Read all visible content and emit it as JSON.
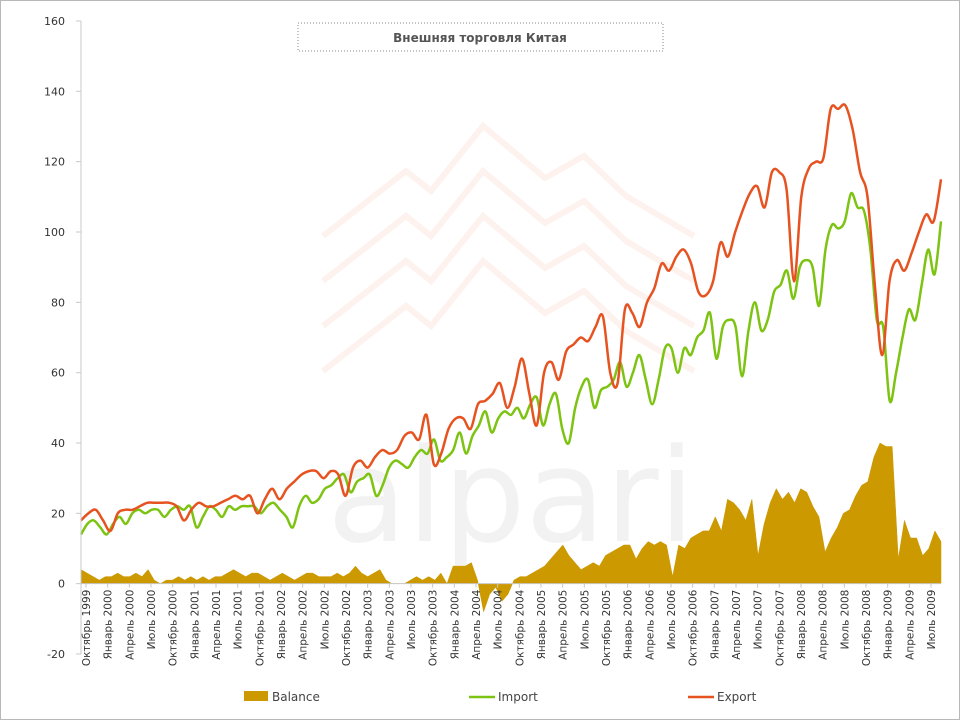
{
  "chart_data": {
    "type": "area",
    "title": "Внешняя торговля Китая",
    "watermark": "alpari",
    "ylim": [
      -20,
      160
    ],
    "yticks": [
      -20,
      0,
      20,
      40,
      60,
      80,
      100,
      120,
      140,
      160
    ],
    "grid": false,
    "legend_placement": "bottom",
    "x_labels": [
      "Октябрь 1999",
      "Январь 2000",
      "Апрель 2000",
      "Июль 2000",
      "Октябрь 2000",
      "Январь 2001",
      "Апрель 2001",
      "Июль 2001",
      "Октябрь 2001",
      "Январь 2002",
      "Апрель 2002",
      "Июль 2002",
      "Октябрь 2002",
      "Январь 2003",
      "Апрель 2003",
      "Июль 2003",
      "Октябрь 2003",
      "Январь 2004",
      "Апрель 2004",
      "Июль 2004",
      "Октябрь 2004",
      "Январь 2005",
      "Апрель 2005",
      "Июль 2005",
      "Октябрь 2005",
      "Январь 2006",
      "Апрель 2006",
      "Июль 2006",
      "Октябрь 2006",
      "Январь 2007",
      "Апрель 2007",
      "Июль 2007",
      "Октябрь 2007",
      "Январь 2008",
      "Апрель 2008",
      "Июль 2008",
      "Октябрь 2008",
      "Январь 2009",
      "Апрель 2009",
      "Июль 2009"
    ],
    "series": [
      {
        "name": "Balance",
        "color": "#CC9900",
        "kind": "area",
        "values": [
          4,
          3,
          2,
          1,
          2,
          2,
          3,
          2,
          2,
          3,
          2,
          4,
          1,
          0,
          1,
          1,
          2,
          1,
          2,
          1,
          2,
          1,
          2,
          2,
          3,
          4,
          3,
          2,
          3,
          3,
          2,
          1,
          2,
          3,
          2,
          1,
          2,
          3,
          3,
          2,
          2,
          2,
          3,
          2,
          3,
          5,
          3,
          2,
          3,
          4,
          1,
          0,
          0,
          0,
          1,
          2,
          1,
          2,
          1,
          3,
          0,
          5,
          5,
          5,
          6,
          1,
          -8,
          -3,
          -1,
          -5,
          -3,
          1,
          2,
          2,
          3,
          4,
          5,
          7,
          9,
          11,
          8,
          6,
          4,
          5,
          6,
          5,
          8,
          9,
          10,
          11,
          11,
          7,
          10,
          12,
          11,
          12,
          11,
          2,
          11,
          10,
          13,
          14,
          15,
          15,
          19,
          15,
          24,
          23,
          21,
          18,
          24,
          8,
          17,
          23,
          27,
          24,
          26,
          23,
          27,
          26,
          22,
          19,
          9,
          13,
          16,
          20,
          21,
          25,
          28,
          29,
          36,
          40,
          39,
          39,
          7,
          18,
          13,
          13,
          8,
          10,
          15,
          12
        ]
      },
      {
        "name": "Import",
        "color": "#7DC312",
        "kind": "line",
        "values": [
          14,
          17,
          18,
          16,
          14,
          17,
          19,
          17,
          20,
          21,
          20,
          21,
          21,
          19,
          21,
          22,
          21,
          22,
          16,
          19,
          22,
          21,
          19,
          22,
          21,
          22,
          22,
          22,
          20,
          22,
          23,
          21,
          19,
          16,
          22,
          25,
          23,
          24,
          27,
          28,
          30,
          31,
          26,
          29,
          30,
          31,
          25,
          28,
          33,
          35,
          34,
          33,
          36,
          38,
          37,
          41,
          35,
          36,
          38,
          43,
          37,
          42,
          45,
          49,
          43,
          47,
          49,
          48,
          50,
          47,
          51,
          53,
          45,
          51,
          54,
          44,
          40,
          50,
          56,
          58,
          50,
          55,
          56,
          58,
          63,
          56,
          60,
          65,
          58,
          51,
          58,
          67,
          67,
          60,
          67,
          65,
          70,
          72,
          77,
          64,
          73,
          75,
          73,
          59,
          72,
          80,
          72,
          75,
          83,
          85,
          89,
          81,
          90,
          92,
          90,
          79,
          95,
          102,
          101,
          103,
          111,
          107,
          106,
          95,
          75,
          73,
          52,
          60,
          70,
          78,
          75,
          85,
          95,
          88,
          103
        ]
      },
      {
        "name": "Export",
        "color": "#E65321",
        "kind": "line",
        "values": [
          18,
          20,
          21,
          18,
          15,
          20,
          21,
          21,
          22,
          23,
          23,
          23,
          23,
          22,
          18,
          21,
          23,
          22,
          22,
          23,
          24,
          25,
          24,
          25,
          20,
          24,
          27,
          24,
          27,
          29,
          31,
          32,
          32,
          30,
          32,
          31,
          25,
          33,
          35,
          33,
          36,
          38,
          37,
          38,
          42,
          43,
          41,
          48,
          34,
          37,
          44,
          47,
          47,
          44,
          51,
          52,
          54,
          57,
          50,
          56,
          64,
          54,
          45,
          60,
          63,
          58,
          66,
          68,
          70,
          69,
          73,
          76,
          60,
          57,
          78,
          77,
          73,
          80,
          84,
          91,
          89,
          93,
          95,
          91,
          83,
          82,
          86,
          97,
          93,
          100,
          106,
          111,
          113,
          107,
          117,
          117,
          112,
          86,
          110,
          118,
          120,
          121,
          135,
          135,
          136,
          129,
          117,
          110,
          85,
          65,
          86,
          92,
          89,
          94,
          100,
          105,
          103,
          115
        ]
      }
    ]
  },
  "legend": {
    "balance_label": "Balance",
    "import_label": "Import",
    "export_label": "Export"
  }
}
